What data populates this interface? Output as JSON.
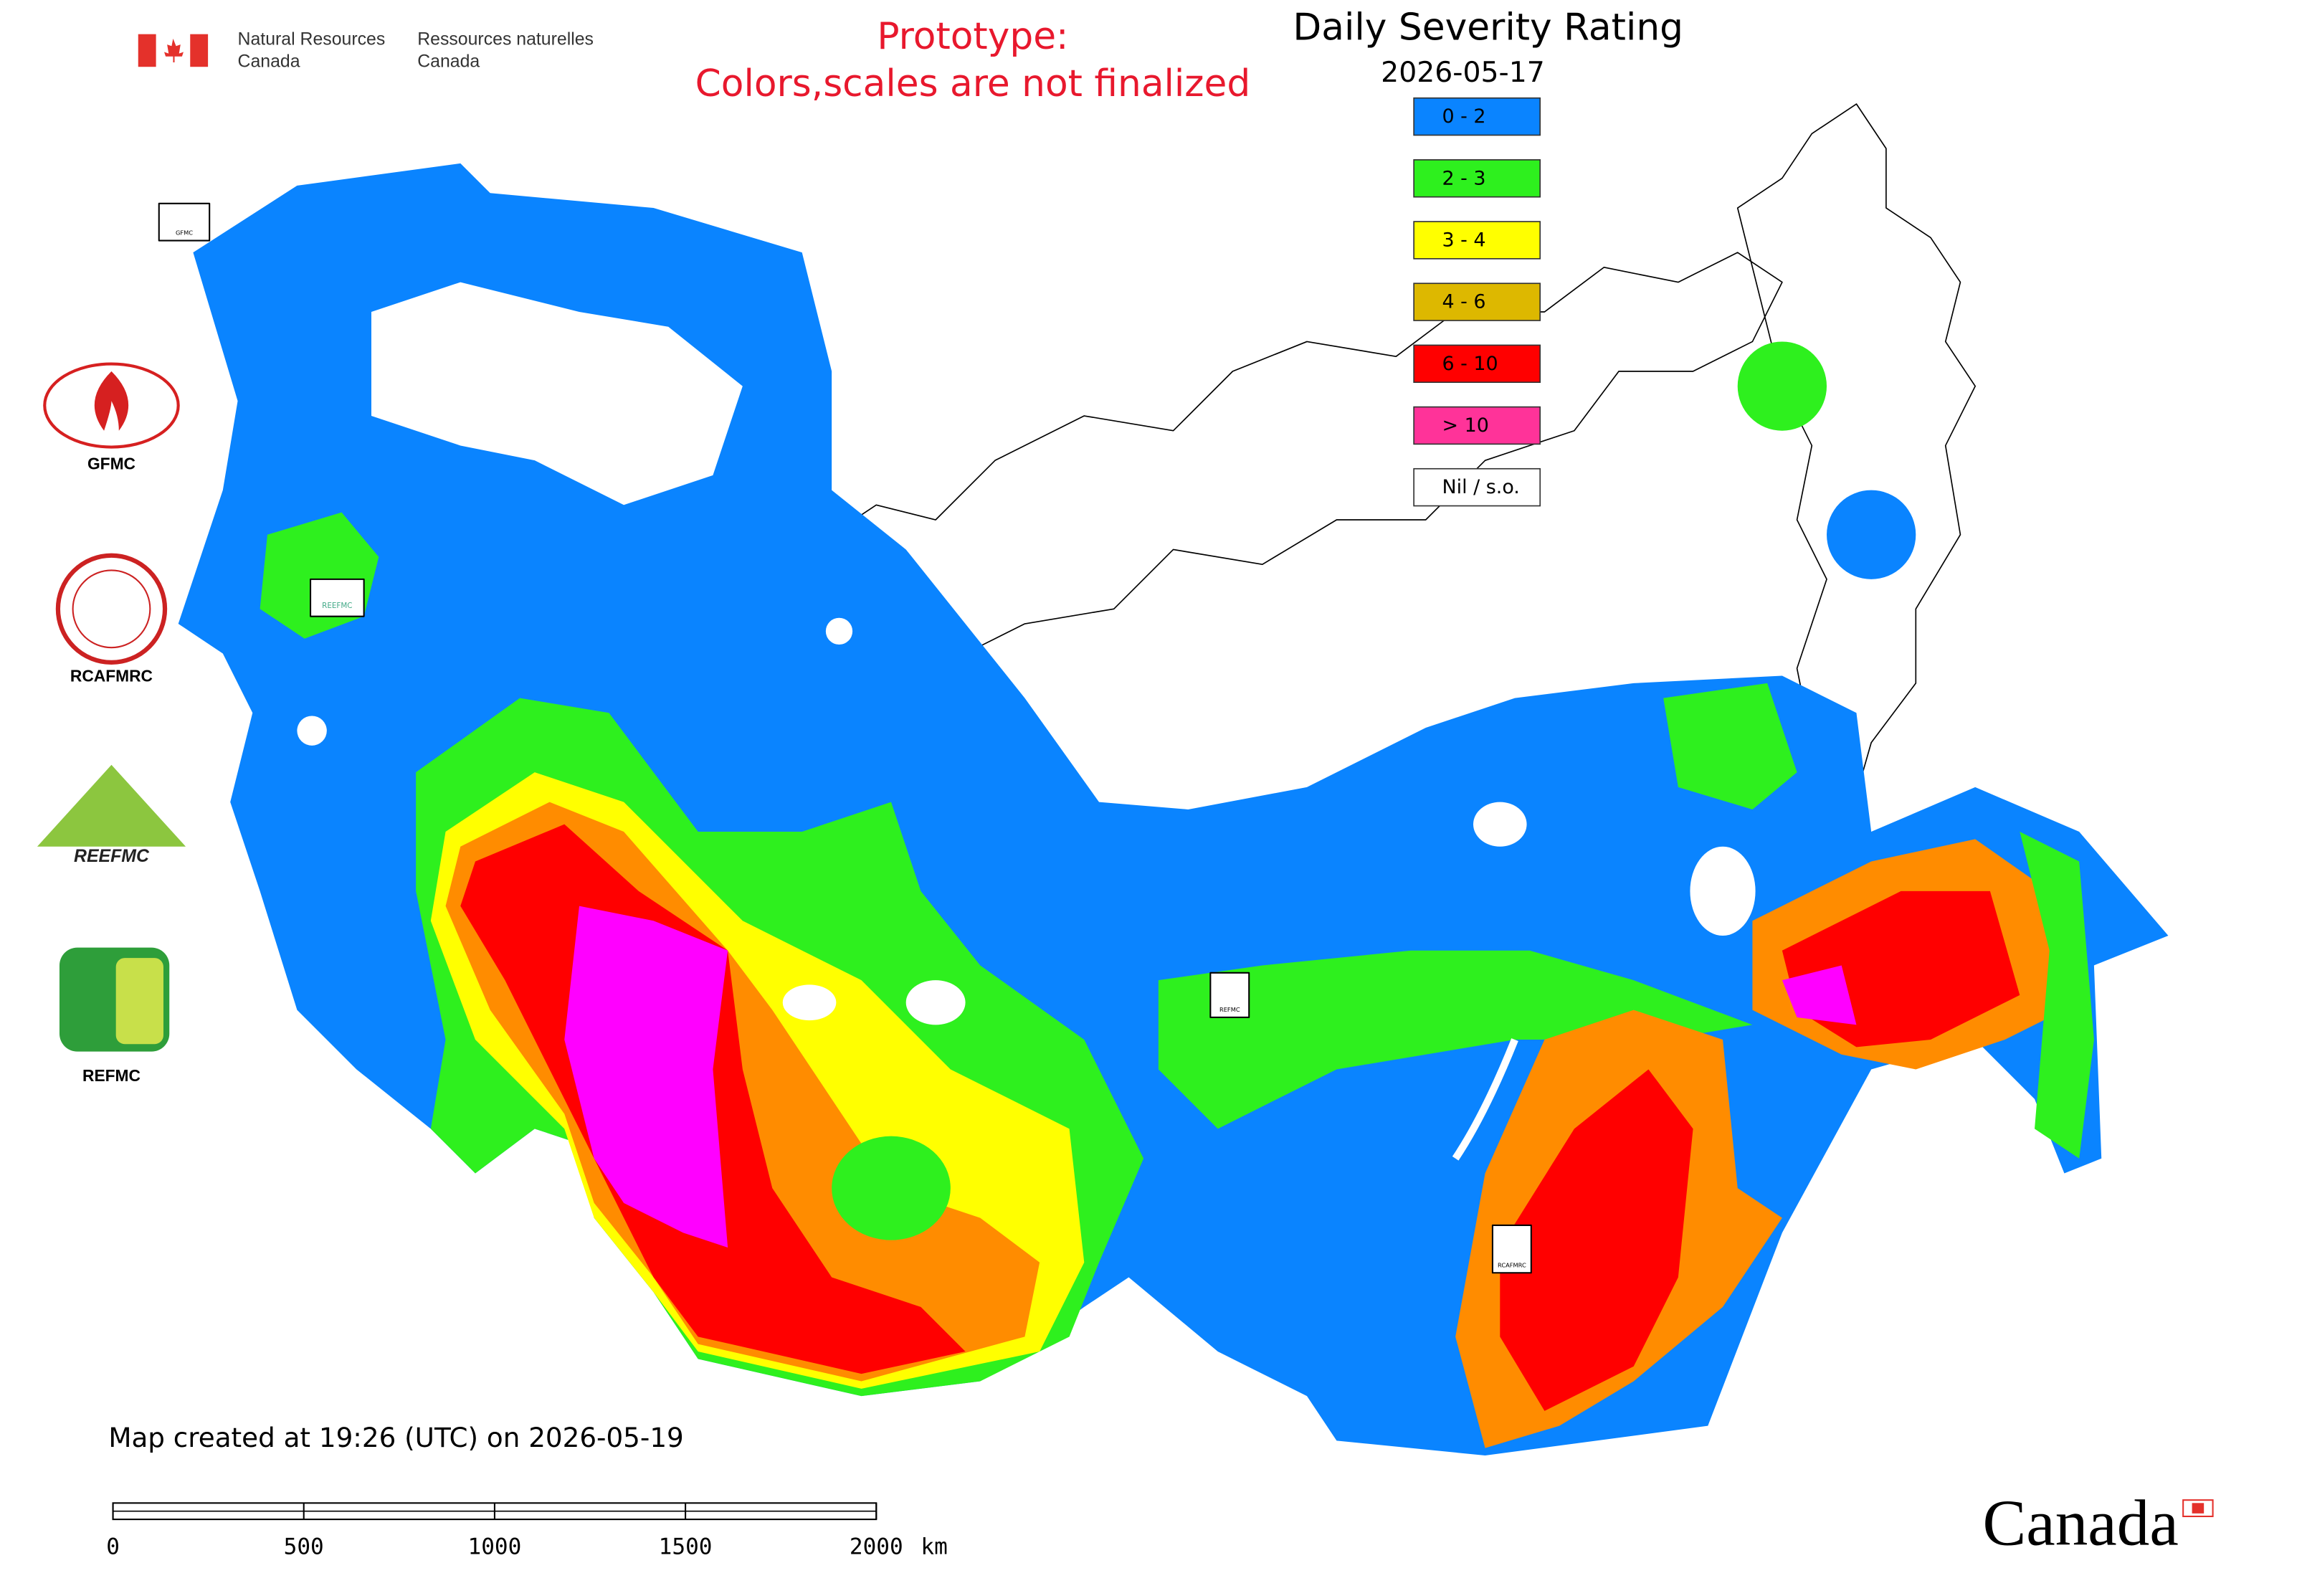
{
  "agency_en": [
    "Natural Resources",
    "Canada"
  ],
  "agency_fr": [
    "Ressources naturelles",
    "Canada"
  ],
  "notice": [
    "Prototype:",
    "Colors,scales are not finalized"
  ],
  "legend": {
    "title": "Daily Severity Rating",
    "date": "2026-05-17",
    "items": [
      {
        "label": "0 - 2",
        "color": "#0a84ff"
      },
      {
        "label": "2 - 3",
        "color": "#2ef01e"
      },
      {
        "label": "3 - 4",
        "color": "#ffff00"
      },
      {
        "label": "4 - 6",
        "color": "#ddb800"
      },
      {
        "label": "6 - 10",
        "color": "#ff0000"
      },
      {
        "label": "> 10",
        "color": "#ff3399"
      },
      {
        "label": "Nil / s.o.",
        "color": "#ffffff"
      }
    ]
  },
  "logos": [
    "GFMC",
    "RCAFMRC",
    "REEFMC",
    "REFMC"
  ],
  "footer": "Map created at 19:26 (UTC) on 2026-05-19",
  "scale_bar": {
    "ticks": [
      0,
      500,
      1000,
      1500,
      2000
    ],
    "unit": "km"
  },
  "wordmark": "Canada"
}
